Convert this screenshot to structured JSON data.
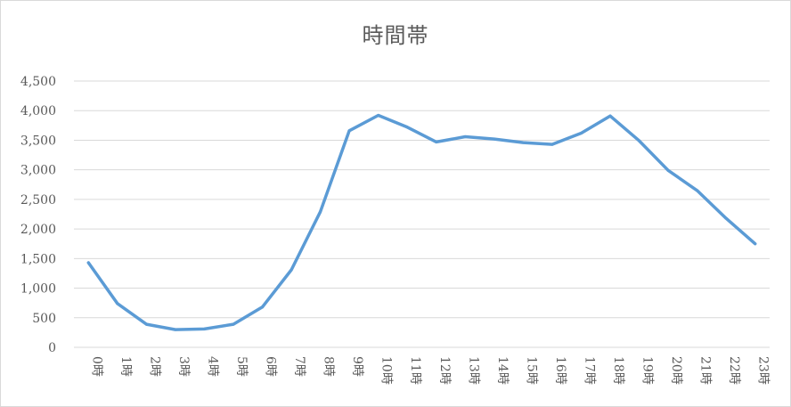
{
  "chart_data": {
    "type": "line",
    "title": "時間帯",
    "xlabel": "",
    "ylabel": "",
    "categories": [
      "0時",
      "1時",
      "2時",
      "3時",
      "4時",
      "5時",
      "6時",
      "7時",
      "8時",
      "9時",
      "10時",
      "11時",
      "12時",
      "13時",
      "14時",
      "15時",
      "16時",
      "17時",
      "18時",
      "19時",
      "20時",
      "21時",
      "22時",
      "23時"
    ],
    "series": [
      {
        "values": [
          1430,
          740,
          390,
          300,
          310,
          390,
          680,
          1310,
          2290,
          3660,
          3920,
          3720,
          3470,
          3560,
          3520,
          3460,
          3430,
          3620,
          3910,
          3490,
          2990,
          2650,
          2180,
          1750
        ]
      }
    ],
    "ylim": [
      0,
      4500
    ],
    "yticks": [
      0,
      500,
      1000,
      1500,
      2000,
      2500,
      3000,
      3500,
      4000,
      4500
    ],
    "ytick_labels": [
      "0",
      "500",
      "1,000",
      "1,500",
      "2,000",
      "2,500",
      "3,000",
      "3,500",
      "4,000",
      "4,500"
    ],
    "grid": true,
    "legend": "none",
    "line_color": "#5b9bd5",
    "grid_color": "#d9d9d9"
  }
}
